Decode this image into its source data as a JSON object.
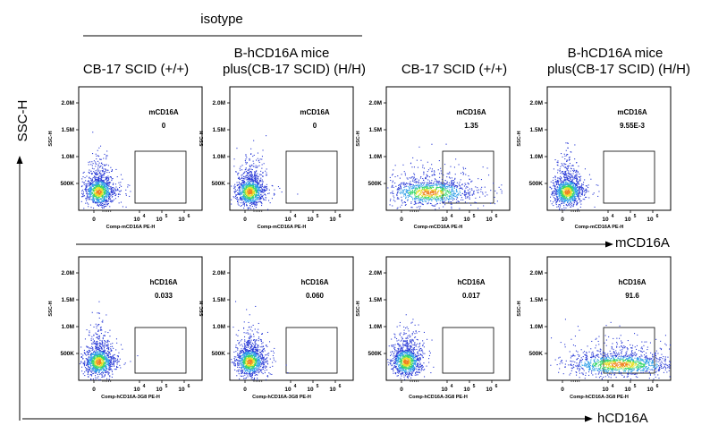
{
  "header": {
    "isotype_label": "isotype",
    "columns": [
      {
        "line1": "",
        "line2": "CB-17 SCID (+/+)"
      },
      {
        "line1": "B-hCD16A mice",
        "line2": "plus(CB-17 SCID)  (H/H)"
      },
      {
        "line1": "",
        "line2": "CB-17 SCID (+/+)"
      },
      {
        "line1": "B-hCD16A mice",
        "line2": "plus(CB-17 SCID)  (H/H)"
      }
    ]
  },
  "y_axis_big_label": "SSC-H",
  "rows": [
    {
      "x_axis_big_label": "mCD16A",
      "x_axis_label": "Comp-mCD16A PE-H",
      "gate_name": "mCD16A"
    },
    {
      "x_axis_big_label": "hCD16A",
      "x_axis_label": "Comp-hCD16A-3G8 PE-H",
      "gate_name": "hCD16A"
    }
  ],
  "chart_data": {
    "type": "scatter",
    "plot_style": "pseudocolor flow cytometry dot plots",
    "y_axis": {
      "label": "SSC-H",
      "ticks": [
        "500K",
        "1.0M",
        "1.5M",
        "2.0M"
      ],
      "range": [
        0,
        2300000
      ]
    },
    "x_axis": {
      "scale": "biexponential",
      "ticks": [
        {
          "base": "0",
          "exp": ""
        },
        {
          "base": "10",
          "exp": "4"
        },
        {
          "base": "10",
          "exp": "5"
        },
        {
          "base": "10",
          "exp": "6"
        }
      ]
    },
    "density_colors": [
      "#2a3bd6",
      "#2f9fe8",
      "#36d66a",
      "#e8e02c",
      "#f08020"
    ],
    "panels": [
      {
        "row": 0,
        "col": 0,
        "gate_name": "mCD16A",
        "gate_value": "0",
        "population": "compact"
      },
      {
        "row": 0,
        "col": 1,
        "gate_name": "mCD16A",
        "gate_value": "0",
        "population": "compact"
      },
      {
        "row": 0,
        "col": 2,
        "gate_name": "mCD16A",
        "gate_value": "1.35",
        "population": "wide-low"
      },
      {
        "row": 0,
        "col": 3,
        "gate_name": "mCD16A",
        "gate_value": "9.55E-3",
        "population": "compact"
      },
      {
        "row": 1,
        "col": 0,
        "gate_name": "hCD16A",
        "gate_value": "0.033",
        "population": "compact"
      },
      {
        "row": 1,
        "col": 1,
        "gate_name": "hCD16A",
        "gate_value": "0.060",
        "population": "compact"
      },
      {
        "row": 1,
        "col": 2,
        "gate_name": "hCD16A",
        "gate_value": "0.017",
        "population": "compact"
      },
      {
        "row": 1,
        "col": 3,
        "gate_name": "hCD16A",
        "gate_value": "91.6",
        "population": "shifted-positive"
      }
    ]
  }
}
